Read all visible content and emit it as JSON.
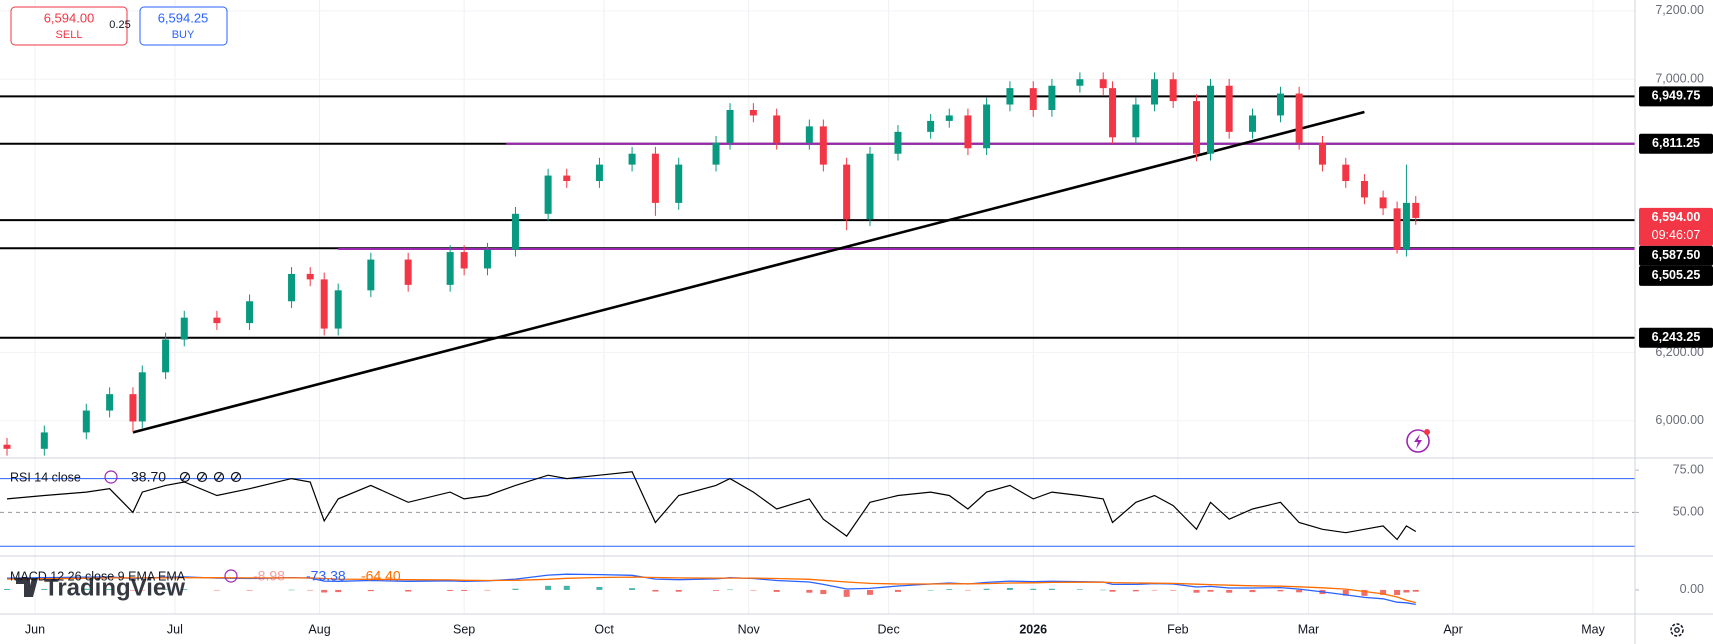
{
  "trade_panel": {
    "sell_price": "6,594.00",
    "sell_label": "SELL",
    "spread": "0.25",
    "buy_price": "6,594.25",
    "buy_label": "BUY"
  },
  "watermark": "TradingView",
  "chart_data": [
    {
      "type": "candlestick",
      "x": [
        -6,
        2,
        11,
        16,
        21,
        23,
        28,
        32,
        39,
        46,
        55,
        59,
        62,
        65,
        72,
        80,
        89,
        92,
        97,
        103,
        110,
        114,
        121,
        128,
        133,
        138,
        146,
        149,
        154,
        159,
        166,
        169,
        174,
        179,
        185,
        192,
        196,
        200,
        204,
        209,
        214,
        218,
        224,
        229,
        231,
        236,
        240,
        244,
        249,
        252,
        256,
        261,
        267,
        271,
        276,
        281,
        285,
        289,
        292,
        294,
        296
      ],
      "open": [
        5930,
        5918,
        5966,
        6030,
        6078,
        5998,
        6142,
        6238,
        6302,
        6286,
        6350,
        6430,
        6414,
        6270,
        6382,
        6472,
        6398,
        6494,
        6446,
        6501,
        6606,
        6718,
        6702,
        6750,
        6782,
        6638,
        6750,
        6814,
        6910,
        6894,
        6814,
        6862,
        6750,
        6590,
        6782,
        6846,
        6878,
        6894,
        6798,
        6926,
        6974,
        6910,
        6981,
        7000,
        6974,
        6830,
        6926,
        7000,
        6936,
        6782,
        6981,
        6846,
        6894,
        6958,
        6814,
        6750,
        6702,
        6654,
        6622,
        6501,
        6638
      ],
      "high": [
        5950,
        5986,
        6050,
        6098,
        6098,
        6162,
        6258,
        6322,
        6322,
        6370,
        6450,
        6450,
        6434,
        6402,
        6492,
        6492,
        6514,
        6514,
        6521,
        6626,
        6738,
        6738,
        6770,
        6802,
        6802,
        6770,
        6834,
        6930,
        6930,
        6914,
        6882,
        6882,
        6770,
        6802,
        6866,
        6898,
        6914,
        6914,
        6946,
        6994,
        6994,
        7001,
        7020,
        7020,
        6994,
        6946,
        7020,
        7020,
        6956,
        7001,
        7001,
        6914,
        6978,
        6978,
        6834,
        6770,
        6722,
        6674,
        6642,
        6750,
        6658
      ],
      "low": [
        5898,
        5898,
        5946,
        6010,
        5966,
        5978,
        6122,
        6218,
        6266,
        6266,
        6330,
        6394,
        6250,
        6250,
        6362,
        6378,
        6378,
        6426,
        6426,
        6481,
        6586,
        6682,
        6682,
        6730,
        6600,
        6618,
        6730,
        6794,
        6874,
        6794,
        6794,
        6730,
        6558,
        6570,
        6762,
        6826,
        6858,
        6778,
        6778,
        6906,
        6890,
        6890,
        6961,
        6954,
        6810,
        6810,
        6906,
        6916,
        6760,
        6762,
        6826,
        6826,
        6874,
        6794,
        6730,
        6682,
        6634,
        6602,
        6490,
        6481,
        6574
      ],
      "close": [
        5918,
        5966,
        6030,
        6078,
        5998,
        6142,
        6238,
        6302,
        6286,
        6350,
        6430,
        6414,
        6270,
        6382,
        6472,
        6398,
        6494,
        6446,
        6501,
        6606,
        6718,
        6702,
        6750,
        6782,
        6638,
        6750,
        6814,
        6910,
        6894,
        6814,
        6862,
        6750,
        6590,
        6782,
        6846,
        6878,
        6894,
        6798,
        6926,
        6974,
        6910,
        6981,
        7000,
        6974,
        6830,
        6926,
        7000,
        6936,
        6782,
        6981,
        6846,
        6894,
        6958,
        6814,
        6750,
        6702,
        6654,
        6622,
        6501,
        6638,
        6594
      ],
      "up_color": "#089981",
      "down_color": "#f23645",
      "xlim": [
        -7.5,
        343
      ],
      "xticks": [
        {
          "value": 0,
          "label": "Jun"
        },
        {
          "value": 30,
          "label": "Jul"
        },
        {
          "value": 61,
          "label": "Aug"
        },
        {
          "value": 92,
          "label": "Sep"
        },
        {
          "value": 122,
          "label": "Oct"
        },
        {
          "value": 153,
          "label": "Nov"
        },
        {
          "value": 183,
          "label": "Dec"
        },
        {
          "value": 214,
          "label": "2026",
          "bold": true
        },
        {
          "value": 245,
          "label": "Feb"
        },
        {
          "value": 273,
          "label": "Mar"
        },
        {
          "value": 304,
          "label": "Apr"
        },
        {
          "value": 334,
          "label": "May"
        }
      ],
      "ylim": [
        5894,
        7232
      ],
      "yticks": [
        {
          "value": 6000,
          "label": "6,000.00"
        },
        {
          "value": 6200,
          "label": "6,200.00"
        },
        {
          "value": 7000,
          "label": "7,000.00"
        },
        {
          "value": 7200,
          "label": "7,200.00"
        }
      ],
      "grid": true,
      "levels": [
        {
          "value": 6949.75,
          "label": "6,949.75",
          "color": "#000000"
        },
        {
          "value": 6811.25,
          "label": "6,811.25",
          "color": "#000000"
        },
        {
          "value": 6587.5,
          "label": "6,587.50",
          "color": "#000000"
        },
        {
          "value": 6505.25,
          "label": "6,505.25",
          "color": "#000000"
        },
        {
          "value": 6243.25,
          "label": "6,243.25",
          "color": "#000000"
        }
      ],
      "rays": [
        {
          "start": 101,
          "value": 6811.25,
          "color": "#9c27b0"
        },
        {
          "start": 65,
          "value": 6503,
          "color": "#9c27b0"
        }
      ],
      "trendline": {
        "x": [
          21,
          285
        ],
        "y": [
          5966,
          6904
        ],
        "color": "#000000"
      },
      "last_price": {
        "value": 6594,
        "label": "6,594.00",
        "countdown": "09:46:07",
        "color": "#f23645"
      }
    },
    {
      "type": "line",
      "title": "RSI 14 close",
      "series": [
        {
          "color": "#000000",
          "last_label": "38.70",
          "values": [
            58,
            60,
            62,
            64,
            50,
            62,
            66,
            68,
            60,
            64,
            70,
            68,
            45,
            58,
            66,
            56,
            62,
            58,
            60,
            66,
            72,
            70,
            72,
            74,
            44,
            60,
            66,
            70,
            62,
            52,
            58,
            46,
            36,
            56,
            60,
            62,
            60,
            52,
            62,
            66,
            58,
            62,
            60,
            58,
            44,
            56,
            60,
            54,
            40,
            56,
            46,
            52,
            56,
            44,
            40,
            38,
            40,
            42,
            34,
            42,
            38.7
          ]
        }
      ],
      "ylim": [
        24.8,
        81.6
      ],
      "yticks": [
        {
          "value": 75,
          "label": "75.00"
        },
        {
          "value": 50,
          "label": "50.00"
        }
      ],
      "bands": [
        70,
        30
      ],
      "band_color": "#2962ff",
      "midline": 50
    },
    {
      "type": "macd",
      "title": "MACD 12 26 close 9 EMA EMA",
      "series": [
        {
          "kind": "histogram",
          "color": "#26a69a",
          "negative_color": "#ef5350",
          "last_label": "-8.98",
          "values": [
            5,
            5,
            6,
            5,
            -3,
            -1,
            3,
            4,
            -2,
            -3,
            1,
            -1,
            -13,
            -11,
            -6,
            -8,
            -5,
            -5,
            -2,
            6,
            21,
            21,
            15,
            9,
            -8,
            -9,
            -4,
            2,
            -2,
            -10,
            -14,
            -21,
            -35,
            -25,
            -10,
            0,
            4,
            -1,
            6,
            10,
            6,
            6,
            3,
            1,
            -9,
            -7,
            -2,
            -3,
            -14,
            -9,
            -14,
            -11,
            -7,
            -12,
            -21,
            -29,
            -30,
            -25,
            -26,
            -13,
            -8.98
          ]
        },
        {
          "kind": "line",
          "color": "#2962ff",
          "last_label": "-73.38",
          "values": [
            60,
            62,
            65,
            66,
            58,
            60,
            64,
            66,
            60,
            58,
            62,
            60,
            45,
            44,
            48,
            44,
            46,
            44,
            46,
            55,
            75,
            80,
            78,
            74,
            55,
            52,
            56,
            62,
            58,
            48,
            40,
            28,
            5,
            8,
            20,
            30,
            35,
            30,
            38,
            45,
            42,
            44,
            42,
            40,
            28,
            28,
            32,
            30,
            15,
            18,
            10,
            10,
            12,
            4,
            -10,
            -25,
            -38,
            -45,
            -62,
            -65,
            -73.38
          ]
        },
        {
          "kind": "line",
          "color": "#ff6d00",
          "last_label": "-64.40",
          "values": [
            55,
            57,
            59,
            61,
            61,
            61,
            61,
            62,
            62,
            61,
            61,
            61,
            58,
            55,
            54,
            52,
            51,
            49,
            48,
            49,
            54,
            59,
            63,
            65,
            63,
            61,
            60,
            60,
            60,
            58,
            54,
            49,
            40,
            33,
            30,
            30,
            31,
            31,
            32,
            35,
            36,
            38,
            39,
            39,
            37,
            35,
            34,
            33,
            29,
            27,
            24,
            21,
            19,
            16,
            11,
            4,
            -8,
            -20,
            -36,
            -52,
            -64.4
          ]
        }
      ],
      "ylim": [
        -122,
        167
      ],
      "yticks": [
        {
          "value": 0,
          "label": "0.00"
        }
      ]
    }
  ]
}
